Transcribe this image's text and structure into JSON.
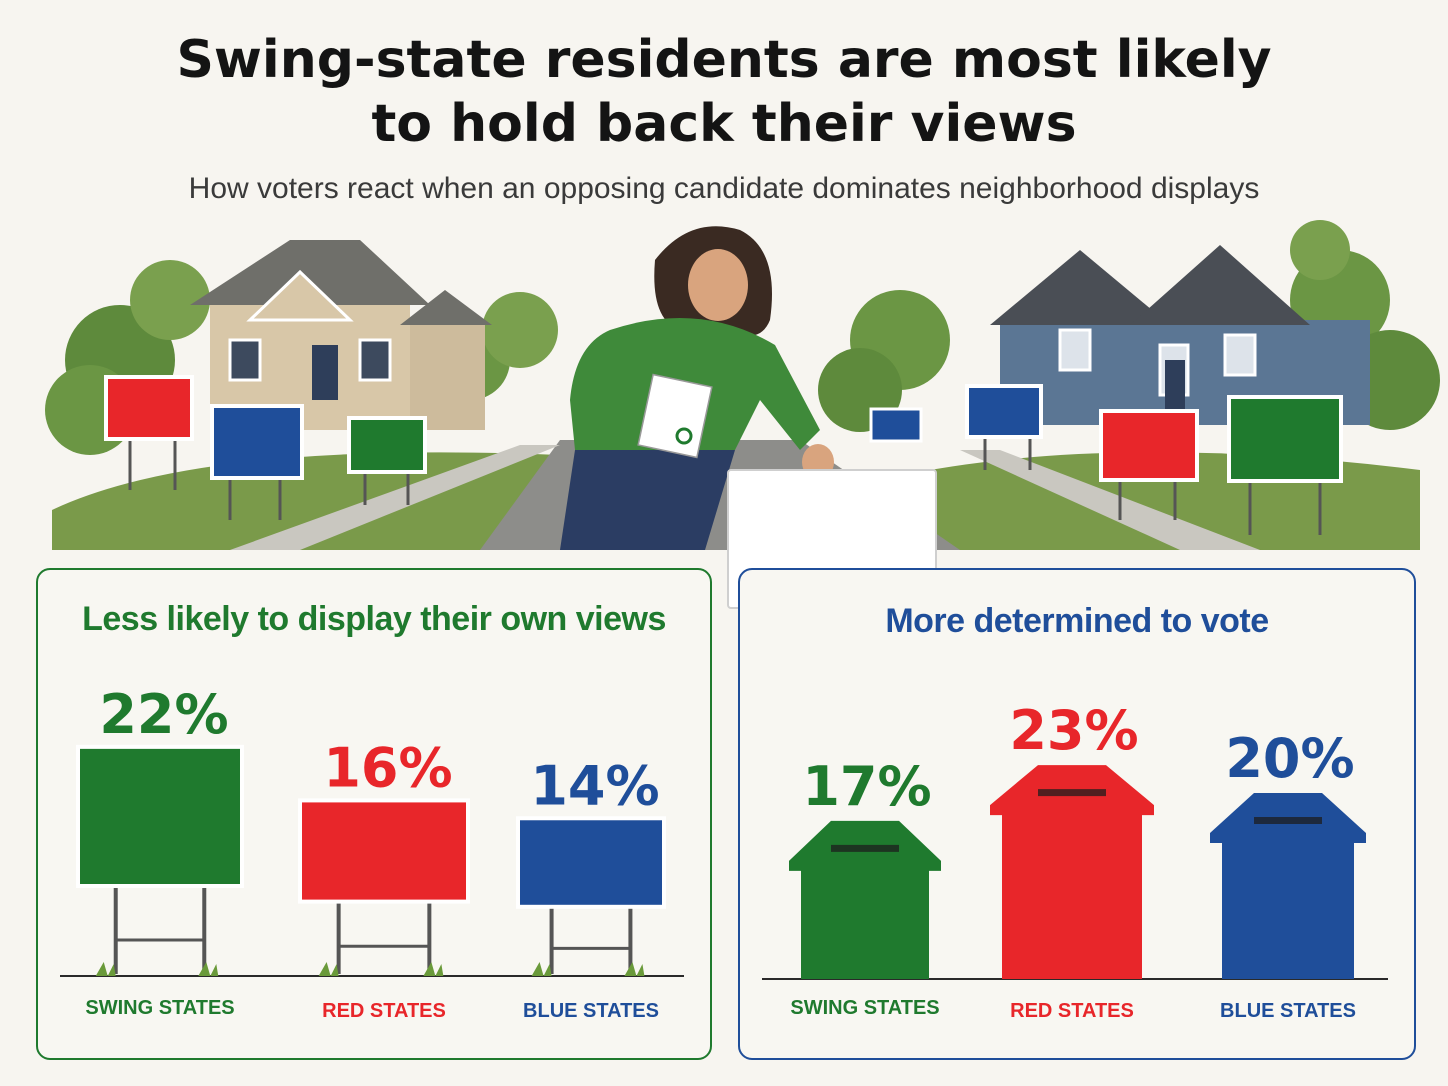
{
  "header": {
    "title_line1": "Swing-state residents are most likely",
    "title_line2": "to hold back their views",
    "subtitle": "How voters react when an opposing candidate dominates neighborhood displays"
  },
  "illustration": {
    "icon": "neighborhood-yard-signs-scene"
  },
  "colors": {
    "swing": "#1f7a2e",
    "red": "#e8262a",
    "blue": "#1f4e9a"
  },
  "chart_data": [
    {
      "type": "bar",
      "title": "Less likely to display their own views",
      "categories": [
        "SWING STATES",
        "RED STATES",
        "BLUE STATES"
      ],
      "values": [
        22,
        16,
        14
      ],
      "labels": [
        "22%",
        "16%",
        "14%"
      ],
      "unit": "%",
      "mark_style": "yard-sign"
    },
    {
      "type": "bar",
      "title": "More determined to vote",
      "categories": [
        "SWING STATES",
        "RED STATES",
        "BLUE STATES"
      ],
      "values": [
        17,
        23,
        20
      ],
      "labels": [
        "17%",
        "23%",
        "20%"
      ],
      "unit": "%",
      "mark_style": "ballot-box"
    }
  ]
}
